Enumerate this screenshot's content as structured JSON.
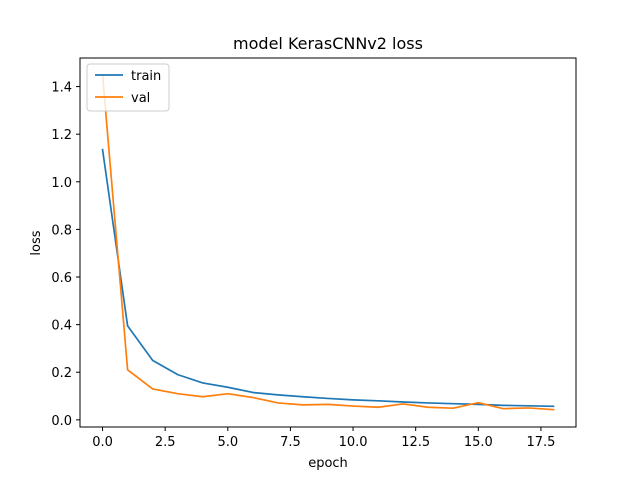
{
  "chart_data": {
    "type": "line",
    "title": "model KerasCNNv2 loss",
    "xlabel": "epoch",
    "ylabel": "loss",
    "xlim": [
      -0.9,
      18.9
    ],
    "ylim": [
      -0.03,
      1.52
    ],
    "xticks": [
      0.0,
      2.5,
      5.0,
      7.5,
      10.0,
      12.5,
      15.0,
      17.5
    ],
    "xtick_labels": [
      "0.0",
      "2.5",
      "5.0",
      "7.5",
      "10.0",
      "12.5",
      "15.0",
      "17.5"
    ],
    "yticks": [
      0.0,
      0.2,
      0.4,
      0.6,
      0.8,
      1.0,
      1.2,
      1.4
    ],
    "ytick_labels": [
      "0.0",
      "0.2",
      "0.4",
      "0.6",
      "0.8",
      "1.0",
      "1.2",
      "1.4"
    ],
    "grid": false,
    "legend_position": "top-left",
    "x": [
      0,
      1,
      2,
      3,
      4,
      5,
      6,
      7,
      8,
      9,
      10,
      11,
      12,
      13,
      14,
      15,
      16,
      17,
      18
    ],
    "series": [
      {
        "name": "train",
        "color": "#1f77b4",
        "values": [
          1.135,
          0.395,
          0.25,
          0.19,
          0.155,
          0.137,
          0.115,
          0.105,
          0.097,
          0.09,
          0.084,
          0.08,
          0.075,
          0.071,
          0.068,
          0.065,
          0.061,
          0.059,
          0.057
        ]
      },
      {
        "name": "val",
        "color": "#ff7f0e",
        "values": [
          1.45,
          0.21,
          0.13,
          0.11,
          0.097,
          0.11,
          0.094,
          0.071,
          0.063,
          0.065,
          0.058,
          0.053,
          0.067,
          0.053,
          0.049,
          0.072,
          0.047,
          0.05,
          0.043
        ]
      }
    ]
  }
}
